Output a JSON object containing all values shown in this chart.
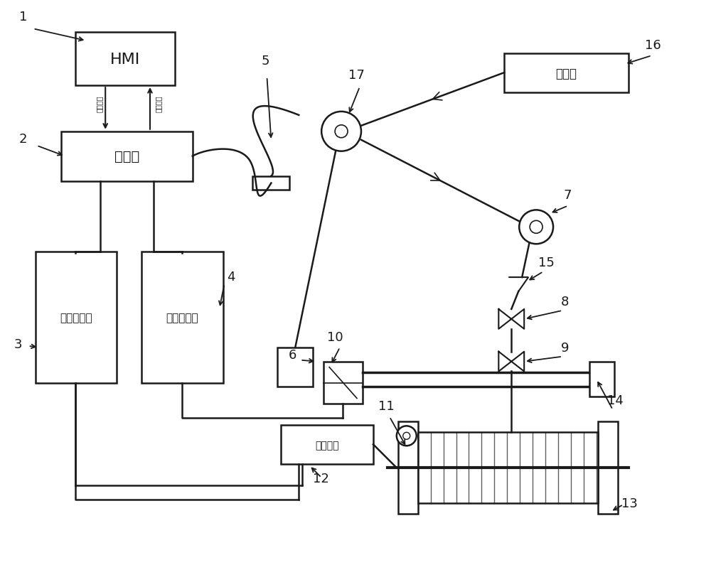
{
  "bg_color": "#ffffff",
  "lc": "#1a1a1a",
  "lw": 1.8,
  "figsize": [
    10.0,
    8.2
  ],
  "dpi": 100,
  "labels": {
    "HMI": "HMI",
    "controller": "控制器",
    "recv_vfd": "收线变频器",
    "wind_vfd": "排线变频器",
    "wire_motor": "收线电机",
    "wire_drawer": "拉丝机",
    "run_param": "运行参数",
    "op_cmd": "操作指令"
  }
}
